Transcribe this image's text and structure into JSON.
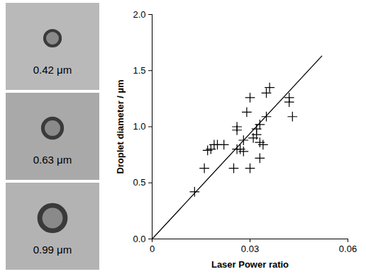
{
  "chart_data": {
    "type": "scatter",
    "x_label": "Laser Power ratio",
    "y_label": "Droplet diameter / µm",
    "x": [
      0.013,
      0.016,
      0.017,
      0.018,
      0.019,
      0.02,
      0.022,
      0.025,
      0.026,
      0.026,
      0.026,
      0.027,
      0.028,
      0.028,
      0.029,
      0.03,
      0.03,
      0.031,
      0.032,
      0.032,
      0.033,
      0.033,
      0.033,
      0.034,
      0.035,
      0.035,
      0.036,
      0.042,
      0.042,
      0.043
    ],
    "values": [
      0.42,
      0.63,
      0.79,
      0.8,
      0.84,
      0.84,
      0.84,
      0.63,
      0.97,
      1.0,
      0.8,
      0.8,
      0.78,
      0.88,
      1.13,
      1.26,
      0.63,
      0.9,
      0.93,
      0.98,
      0.86,
      1.02,
      0.72,
      0.84,
      1.3,
      1.09,
      1.35,
      1.26,
      1.22,
      1.09
    ],
    "fit_line": {
      "x": [
        0,
        0.052
      ],
      "y": [
        0,
        1.63
      ]
    },
    "color": "#000000",
    "marker": "plus",
    "xlim": [
      0,
      0.06
    ],
    "xticks": [
      0,
      0.03,
      0.06
    ],
    "ylim": [
      0,
      2
    ],
    "yticks": [
      {
        "value": 0,
        "label": "0.0"
      },
      0.5,
      {
        "value": 1,
        "label": "1.0"
      },
      1.5,
      {
        "value": 2,
        "label": "2.0"
      }
    ],
    "grid": false
  },
  "micrographs": [
    {
      "label": "0.42 μm",
      "diameter": 0.42
    },
    {
      "label": "0.63 μm",
      "diameter": 0.63
    },
    {
      "label": "0.99 μm",
      "diameter": 0.99
    }
  ]
}
